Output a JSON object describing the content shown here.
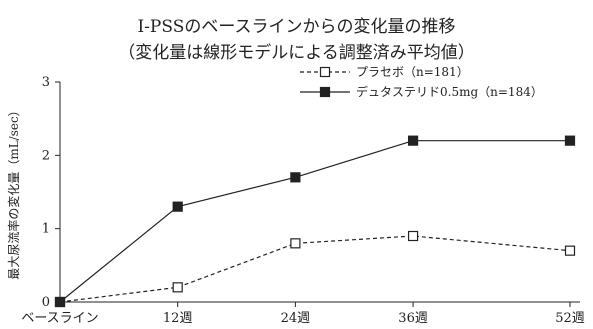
{
  "chart_data": {
    "type": "line",
    "title": "I-PSSのベースラインからの変化量の推移",
    "subtitle": "（変化量は線形モデルによる調整済み平均値）",
    "xlabel": "",
    "ylabel": "最大尿流率の変化量（mL/sec）",
    "categories": [
      "ベースライン",
      "12週",
      "24週",
      "36週",
      "52週"
    ],
    "x": [
      0,
      12,
      24,
      36,
      52
    ],
    "ylim": [
      0,
      3
    ],
    "yticks": [
      "0",
      "1",
      "2",
      "3"
    ],
    "grid": false,
    "legend_position": "top-right",
    "series": [
      {
        "name": "プラセボ（n=181）",
        "values": [
          0,
          0.2,
          0.8,
          0.9,
          0.7
        ],
        "color": "#222222",
        "line": "dashed",
        "marker": "open-square"
      },
      {
        "name": "デュタステリド0.5mg（n=184）",
        "values": [
          0,
          1.3,
          1.7,
          2.2,
          2.2
        ],
        "color": "#222222",
        "line": "solid",
        "marker": "filled-square"
      }
    ]
  }
}
